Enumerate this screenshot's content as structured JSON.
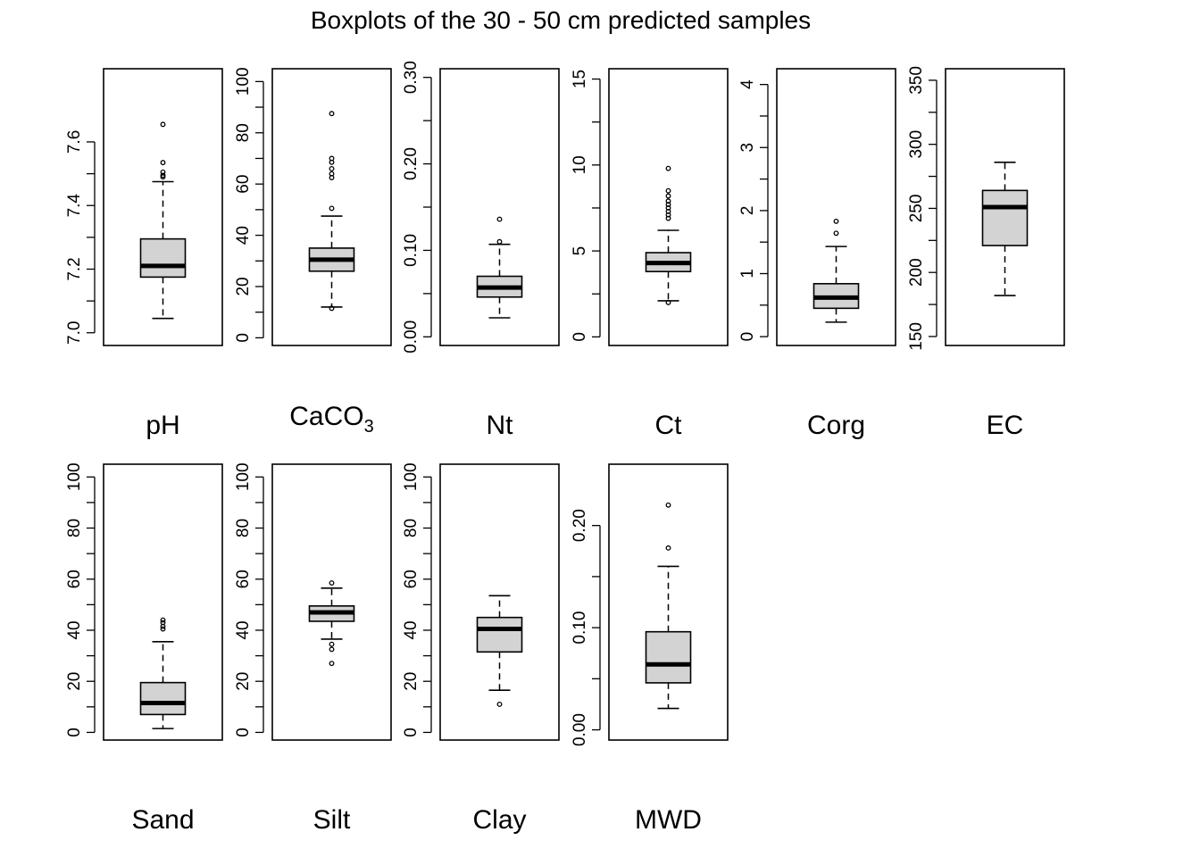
{
  "chart_data": {
    "type": "boxplot",
    "title": "Boxplots of the 30 - 50 cm predicted samples",
    "panels": [
      {
        "label": "pH",
        "ylim": [
          6.96,
          7.83
        ],
        "ticks": [
          "7.0",
          "7.2",
          "7.4",
          "7.6"
        ],
        "tick_values": [
          7.0,
          7.2,
          7.4,
          7.6
        ],
        "box": {
          "whisker_low": 7.045,
          "q1": 7.175,
          "median": 7.21,
          "q3": 7.295,
          "whisker_high": 7.475
        },
        "outliers": [
          7.655,
          7.535,
          7.505,
          7.495,
          7.49
        ]
      },
      {
        "label": "CaCO",
        "label_sub": "3",
        "ylim": [
          -3,
          105
        ],
        "ticks": [
          "0",
          "20",
          "40",
          "60",
          "80",
          "100"
        ],
        "tick_values": [
          0,
          20,
          40,
          60,
          80,
          100
        ],
        "box": {
          "whisker_low": 12,
          "q1": 26,
          "median": 30.5,
          "q3": 35,
          "whisker_high": 47.5
        },
        "outliers": [
          87.5,
          70,
          68.5,
          66,
          64,
          62.5,
          50.5,
          11.5
        ]
      },
      {
        "label": "Nt",
        "ylim": [
          -0.01,
          0.31
        ],
        "ticks": [
          "0.00",
          "0.10",
          "0.20",
          "0.30"
        ],
        "tick_values": [
          0.0,
          0.1,
          0.2,
          0.3
        ],
        "box": {
          "whisker_low": 0.022,
          "q1": 0.046,
          "median": 0.057,
          "q3": 0.07,
          "whisker_high": 0.107
        },
        "outliers": [
          0.136,
          0.11
        ]
      },
      {
        "label": "Ct",
        "ylim": [
          -0.5,
          15.6
        ],
        "ticks": [
          "0",
          "5",
          "10",
          "15"
        ],
        "tick_values": [
          0,
          5,
          10,
          15
        ],
        "box": {
          "whisker_low": 2.1,
          "q1": 3.8,
          "median": 4.3,
          "q3": 4.9,
          "whisker_high": 6.2
        },
        "outliers": [
          9.8,
          8.5,
          8.2,
          7.9,
          7.7,
          7.5,
          7.3,
          7.1,
          6.9,
          2.0
        ]
      },
      {
        "label": "Corg",
        "ylim": [
          -0.14,
          4.25
        ],
        "ticks": [
          "0",
          "1",
          "2",
          "3",
          "4"
        ],
        "tick_values": [
          0,
          1,
          2,
          3,
          4
        ],
        "box": {
          "whisker_low": 0.23,
          "q1": 0.45,
          "median": 0.62,
          "q3": 0.84,
          "whisker_high": 1.43
        },
        "outliers": [
          1.83,
          1.64
        ]
      },
      {
        "label": "EC",
        "ylim": [
          143,
          359
        ],
        "ticks": [
          "150",
          "200",
          "250",
          "300",
          "350"
        ],
        "tick_values": [
          150,
          200,
          250,
          300,
          350
        ],
        "box": {
          "whisker_low": 182,
          "q1": 221,
          "median": 251,
          "q3": 264,
          "whisker_high": 286
        },
        "outliers": []
      },
      {
        "label": "Sand",
        "ylim": [
          -3,
          105
        ],
        "ticks": [
          "0",
          "20",
          "40",
          "60",
          "80",
          "100"
        ],
        "tick_values": [
          0,
          20,
          40,
          60,
          80,
          100
        ],
        "box": {
          "whisker_low": 1.5,
          "q1": 7,
          "median": 11.5,
          "q3": 19.5,
          "whisker_high": 35.5
        },
        "outliers": [
          44,
          43,
          41.5,
          40.5
        ]
      },
      {
        "label": "Silt",
        "ylim": [
          -3,
          105
        ],
        "ticks": [
          "0",
          "20",
          "40",
          "60",
          "80",
          "100"
        ],
        "tick_values": [
          0,
          20,
          40,
          60,
          80,
          100
        ],
        "box": {
          "whisker_low": 36.5,
          "q1": 43.5,
          "median": 47,
          "q3": 49.5,
          "whisker_high": 56.5
        },
        "outliers": [
          58.5,
          34.5,
          32.5,
          27
        ]
      },
      {
        "label": "Clay",
        "ylim": [
          -3,
          105
        ],
        "ticks": [
          "0",
          "20",
          "40",
          "60",
          "80",
          "100"
        ],
        "tick_values": [
          0,
          20,
          40,
          60,
          80,
          100
        ],
        "box": {
          "whisker_low": 16.5,
          "q1": 31.5,
          "median": 40.5,
          "q3": 45,
          "whisker_high": 53.5
        },
        "outliers": [
          11
        ]
      },
      {
        "label": "MWD",
        "ylim": [
          -0.01,
          0.26
        ],
        "ticks": [
          "0.00",
          "0.10",
          "0.20"
        ],
        "tick_values": [
          0.0,
          0.1,
          0.2
        ],
        "box": {
          "whisker_low": 0.021,
          "q1": 0.046,
          "median": 0.064,
          "q3": 0.096,
          "whisker_high": 0.16
        },
        "outliers": [
          0.22,
          0.178
        ]
      }
    ],
    "colors": {
      "box_fill": "#d3d3d3",
      "stroke": "#000000"
    }
  }
}
